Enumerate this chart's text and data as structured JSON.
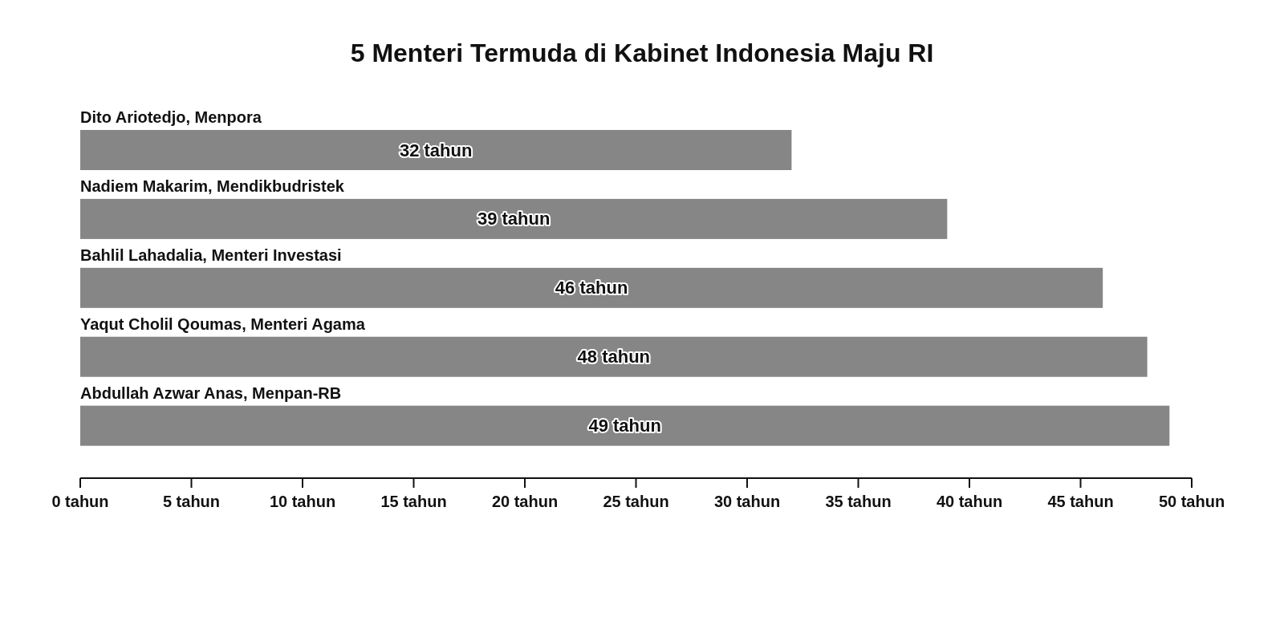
{
  "chart_data": {
    "type": "bar",
    "orientation": "horizontal",
    "title": "5 Menteri Termuda di Kabinet Indonesia Maju RI",
    "categories": [
      "Dito Ariotedjo, Menpora",
      "Nadiem Makarim, Mendikbudristek",
      "Bahlil Lahadalia, Menteri Investasi",
      "Yaqut Cholil Qoumas, Menteri Agama",
      "Abdullah Azwar Anas, Menpan-RB"
    ],
    "values": [
      32,
      39,
      46,
      48,
      49
    ],
    "color": "#868686",
    "value_labels": [
      "32 tahun",
      "39 tahun",
      "46 tahun",
      "48 tahun",
      "49 tahun"
    ],
    "xlim": [
      0,
      50
    ],
    "xticks": [
      {
        "value": 0,
        "label": "0 tahun"
      },
      {
        "value": 5,
        "label": "5 tahun"
      },
      {
        "value": 10,
        "label": "10 tahun"
      },
      {
        "value": 15,
        "label": "15 tahun"
      },
      {
        "value": 20,
        "label": "20 tahun"
      },
      {
        "value": 25,
        "label": "25 tahun"
      },
      {
        "value": 30,
        "label": "30 tahun"
      },
      {
        "value": 35,
        "label": "35 tahun"
      },
      {
        "value": 40,
        "label": "40 tahun"
      },
      {
        "value": 45,
        "label": "45 tahun"
      },
      {
        "value": 50,
        "label": "50 tahun"
      }
    ]
  }
}
